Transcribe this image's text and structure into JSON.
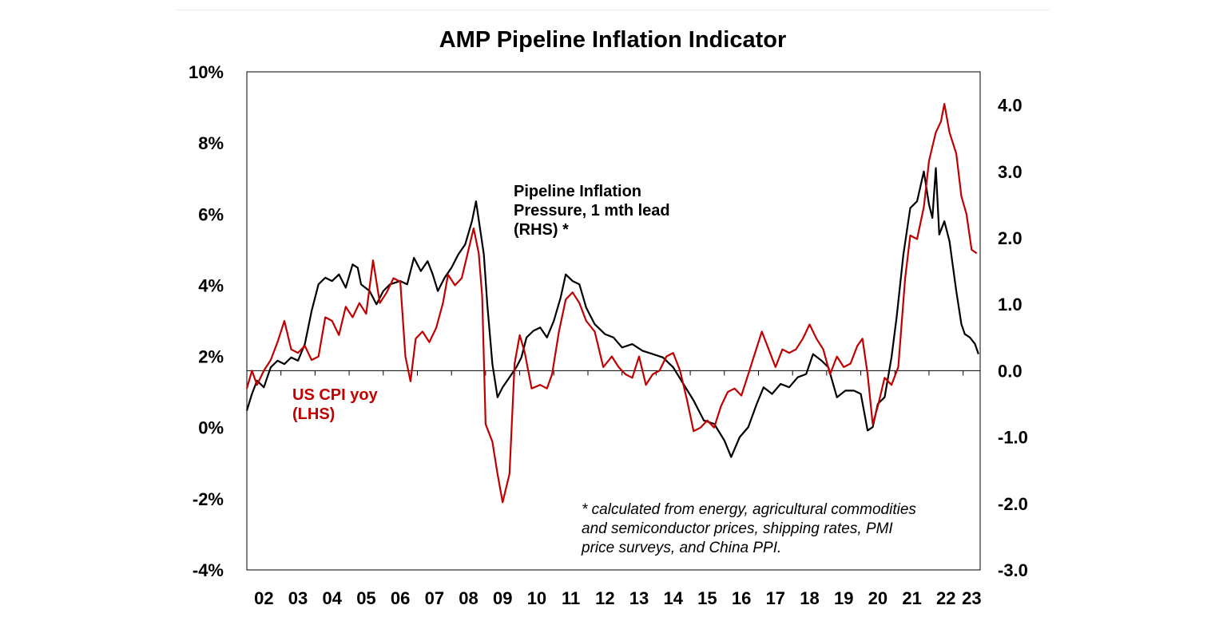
{
  "chart_data": {
    "type": "line",
    "title": "AMP Pipeline Inflation Indicator",
    "x_ticks": [
      "02",
      "03",
      "04",
      "05",
      "06",
      "07",
      "08",
      "09",
      "10",
      "11",
      "12",
      "13",
      "14",
      "15",
      "16",
      "17",
      "18",
      "19",
      "20",
      "21",
      "22",
      "23"
    ],
    "x_range": [
      2002.0,
      2023.5
    ],
    "y_left": {
      "range": [
        -4,
        10
      ],
      "ticks": [
        -4,
        -2,
        0,
        2,
        4,
        6,
        8,
        10
      ],
      "tick_labels": [
        "-4%",
        "-2%",
        "0%",
        "2%",
        "4%",
        "6%",
        "8%",
        "10%"
      ]
    },
    "y_right": {
      "range": [
        -3.0,
        4.5
      ],
      "ticks": [
        -3,
        -2,
        -1,
        0,
        1,
        2,
        3,
        4
      ],
      "tick_labels": [
        "-3.0",
        "-2.0",
        "-1.0",
        "0.0",
        "1.0",
        "2.0",
        "3.0",
        "4.0"
      ]
    },
    "series": [
      {
        "name": "Pipeline Inflation Pressure, 1 mth lead (RHS) *",
        "label_lines": [
          "Pipeline Inflation",
          "Pressure, 1 mth lead",
          "(RHS) *"
        ],
        "axis": "right",
        "color": "#000000",
        "points": [
          [
            2002.0,
            -0.6
          ],
          [
            2002.15,
            -0.35
          ],
          [
            2002.3,
            -0.15
          ],
          [
            2002.5,
            -0.25
          ],
          [
            2002.7,
            0.05
          ],
          [
            2002.9,
            0.15
          ],
          [
            2003.1,
            0.1
          ],
          [
            2003.3,
            0.2
          ],
          [
            2003.5,
            0.15
          ],
          [
            2003.7,
            0.4
          ],
          [
            2003.9,
            0.9
          ],
          [
            2004.1,
            1.3
          ],
          [
            2004.3,
            1.4
          ],
          [
            2004.5,
            1.35
          ],
          [
            2004.7,
            1.45
          ],
          [
            2004.9,
            1.25
          ],
          [
            2005.1,
            1.6
          ],
          [
            2005.25,
            1.55
          ],
          [
            2005.35,
            1.3
          ],
          [
            2005.6,
            1.2
          ],
          [
            2005.8,
            1.0
          ],
          [
            2006.0,
            1.2
          ],
          [
            2006.2,
            1.3
          ],
          [
            2006.5,
            1.35
          ],
          [
            2006.7,
            1.3
          ],
          [
            2006.9,
            1.7
          ],
          [
            2007.1,
            1.5
          ],
          [
            2007.3,
            1.65
          ],
          [
            2007.45,
            1.45
          ],
          [
            2007.6,
            1.2
          ],
          [
            2007.8,
            1.4
          ],
          [
            2008.0,
            1.55
          ],
          [
            2008.2,
            1.75
          ],
          [
            2008.4,
            1.9
          ],
          [
            2008.6,
            2.25
          ],
          [
            2008.72,
            2.55
          ],
          [
            2008.82,
            2.2
          ],
          [
            2008.95,
            1.75
          ],
          [
            2009.05,
            1.0
          ],
          [
            2009.2,
            0.1
          ],
          [
            2009.35,
            -0.4
          ],
          [
            2009.5,
            -0.25
          ],
          [
            2009.7,
            -0.1
          ],
          [
            2009.9,
            0.05
          ],
          [
            2010.05,
            0.2
          ],
          [
            2010.2,
            0.5
          ],
          [
            2010.4,
            0.6
          ],
          [
            2010.6,
            0.65
          ],
          [
            2010.8,
            0.5
          ],
          [
            2011.0,
            0.75
          ],
          [
            2011.2,
            1.1
          ],
          [
            2011.35,
            1.45
          ],
          [
            2011.55,
            1.35
          ],
          [
            2011.75,
            1.3
          ],
          [
            2011.95,
            0.95
          ],
          [
            2012.2,
            0.7
          ],
          [
            2012.5,
            0.55
          ],
          [
            2012.75,
            0.5
          ],
          [
            2013.0,
            0.35
          ],
          [
            2013.3,
            0.4
          ],
          [
            2013.6,
            0.3
          ],
          [
            2013.9,
            0.25
          ],
          [
            2014.2,
            0.2
          ],
          [
            2014.5,
            0.05
          ],
          [
            2014.8,
            -0.2
          ],
          [
            2015.1,
            -0.45
          ],
          [
            2015.4,
            -0.75
          ],
          [
            2015.7,
            -0.8
          ],
          [
            2016.0,
            -1.05
          ],
          [
            2016.2,
            -1.3
          ],
          [
            2016.45,
            -1.0
          ],
          [
            2016.7,
            -0.85
          ],
          [
            2016.95,
            -0.5
          ],
          [
            2017.15,
            -0.25
          ],
          [
            2017.4,
            -0.35
          ],
          [
            2017.65,
            -0.2
          ],
          [
            2017.9,
            -0.25
          ],
          [
            2018.15,
            -0.1
          ],
          [
            2018.4,
            -0.05
          ],
          [
            2018.6,
            0.25
          ],
          [
            2018.85,
            0.15
          ],
          [
            2019.05,
            0.05
          ],
          [
            2019.3,
            -0.4
          ],
          [
            2019.55,
            -0.3
          ],
          [
            2019.8,
            -0.3
          ],
          [
            2020.0,
            -0.35
          ],
          [
            2020.2,
            -0.9
          ],
          [
            2020.35,
            -0.85
          ],
          [
            2020.5,
            -0.5
          ],
          [
            2020.7,
            -0.4
          ],
          [
            2020.9,
            0.2
          ],
          [
            2021.05,
            0.8
          ],
          [
            2021.25,
            1.75
          ],
          [
            2021.45,
            2.45
          ],
          [
            2021.65,
            2.55
          ],
          [
            2021.85,
            3.0
          ],
          [
            2022.0,
            2.5
          ],
          [
            2022.1,
            2.3
          ],
          [
            2022.2,
            3.05
          ],
          [
            2022.3,
            2.05
          ],
          [
            2022.45,
            2.25
          ],
          [
            2022.6,
            1.95
          ],
          [
            2022.8,
            1.2
          ],
          [
            2022.95,
            0.7
          ],
          [
            2023.05,
            0.55
          ],
          [
            2023.2,
            0.5
          ],
          [
            2023.35,
            0.4
          ],
          [
            2023.45,
            0.25
          ]
        ]
      },
      {
        "name": "US CPI yoy (LHS)",
        "label_lines": [
          "US CPI yoy",
          "(LHS)"
        ],
        "axis": "left",
        "color": "#c00000",
        "points": [
          [
            2002.0,
            1.1
          ],
          [
            2002.15,
            1.6
          ],
          [
            2002.3,
            1.2
          ],
          [
            2002.5,
            1.6
          ],
          [
            2002.7,
            1.9
          ],
          [
            2002.9,
            2.4
          ],
          [
            2003.1,
            3.0
          ],
          [
            2003.3,
            2.2
          ],
          [
            2003.5,
            2.1
          ],
          [
            2003.7,
            2.3
          ],
          [
            2003.9,
            1.9
          ],
          [
            2004.1,
            2.0
          ],
          [
            2004.3,
            3.1
          ],
          [
            2004.5,
            3.0
          ],
          [
            2004.7,
            2.6
          ],
          [
            2004.9,
            3.4
          ],
          [
            2005.1,
            3.1
          ],
          [
            2005.3,
            3.5
          ],
          [
            2005.5,
            3.2
          ],
          [
            2005.7,
            4.7
          ],
          [
            2005.9,
            3.5
          ],
          [
            2006.1,
            3.8
          ],
          [
            2006.3,
            4.2
          ],
          [
            2006.5,
            4.1
          ],
          [
            2006.65,
            2.0
          ],
          [
            2006.8,
            1.3
          ],
          [
            2006.95,
            2.5
          ],
          [
            2007.15,
            2.7
          ],
          [
            2007.35,
            2.4
          ],
          [
            2007.55,
            2.8
          ],
          [
            2007.75,
            3.5
          ],
          [
            2007.9,
            4.3
          ],
          [
            2008.1,
            4.0
          ],
          [
            2008.3,
            4.2
          ],
          [
            2008.5,
            5.0
          ],
          [
            2008.65,
            5.6
          ],
          [
            2008.8,
            4.9
          ],
          [
            2008.9,
            3.7
          ],
          [
            2009.0,
            0.1
          ],
          [
            2009.2,
            -0.4
          ],
          [
            2009.35,
            -1.3
          ],
          [
            2009.5,
            -2.1
          ],
          [
            2009.7,
            -1.3
          ],
          [
            2009.85,
            1.8
          ],
          [
            2010.0,
            2.6
          ],
          [
            2010.15,
            2.1
          ],
          [
            2010.35,
            1.1
          ],
          [
            2010.6,
            1.2
          ],
          [
            2010.8,
            1.1
          ],
          [
            2010.95,
            1.5
          ],
          [
            2011.15,
            2.7
          ],
          [
            2011.35,
            3.6
          ],
          [
            2011.55,
            3.8
          ],
          [
            2011.75,
            3.5
          ],
          [
            2011.95,
            3.0
          ],
          [
            2012.2,
            2.7
          ],
          [
            2012.45,
            1.7
          ],
          [
            2012.7,
            2.0
          ],
          [
            2012.9,
            1.7
          ],
          [
            2013.1,
            1.5
          ],
          [
            2013.3,
            1.4
          ],
          [
            2013.5,
            2.0
          ],
          [
            2013.7,
            1.2
          ],
          [
            2013.9,
            1.5
          ],
          [
            2014.1,
            1.6
          ],
          [
            2014.3,
            2.0
          ],
          [
            2014.5,
            2.1
          ],
          [
            2014.7,
            1.6
          ],
          [
            2014.9,
            0.8
          ],
          [
            2015.1,
            -0.1
          ],
          [
            2015.3,
            0.0
          ],
          [
            2015.5,
            0.2
          ],
          [
            2015.7,
            0.0
          ],
          [
            2015.9,
            0.6
          ],
          [
            2016.1,
            1.0
          ],
          [
            2016.3,
            1.1
          ],
          [
            2016.5,
            0.9
          ],
          [
            2016.7,
            1.5
          ],
          [
            2016.9,
            2.1
          ],
          [
            2017.1,
            2.7
          ],
          [
            2017.3,
            2.2
          ],
          [
            2017.5,
            1.7
          ],
          [
            2017.7,
            2.2
          ],
          [
            2017.9,
            2.1
          ],
          [
            2018.1,
            2.2
          ],
          [
            2018.3,
            2.5
          ],
          [
            2018.5,
            2.9
          ],
          [
            2018.7,
            2.5
          ],
          [
            2018.9,
            2.2
          ],
          [
            2019.1,
            1.5
          ],
          [
            2019.3,
            2.0
          ],
          [
            2019.5,
            1.7
          ],
          [
            2019.7,
            1.8
          ],
          [
            2019.9,
            2.3
          ],
          [
            2020.05,
            2.5
          ],
          [
            2020.2,
            1.5
          ],
          [
            2020.35,
            0.1
          ],
          [
            2020.5,
            0.6
          ],
          [
            2020.7,
            1.4
          ],
          [
            2020.9,
            1.2
          ],
          [
            2021.1,
            1.7
          ],
          [
            2021.3,
            4.2
          ],
          [
            2021.45,
            5.4
          ],
          [
            2021.65,
            5.3
          ],
          [
            2021.85,
            6.2
          ],
          [
            2022.0,
            7.5
          ],
          [
            2022.2,
            8.3
          ],
          [
            2022.35,
            8.6
          ],
          [
            2022.45,
            9.1
          ],
          [
            2022.6,
            8.3
          ],
          [
            2022.8,
            7.7
          ],
          [
            2022.95,
            6.5
          ],
          [
            2023.1,
            6.0
          ],
          [
            2023.25,
            5.0
          ],
          [
            2023.4,
            4.9
          ]
        ]
      }
    ],
    "annotation": [
      "* calculated from energy, agricultural commodities",
      "and semiconductor prices, shipping rates, PMI",
      "price surveys, and China PPI."
    ]
  }
}
